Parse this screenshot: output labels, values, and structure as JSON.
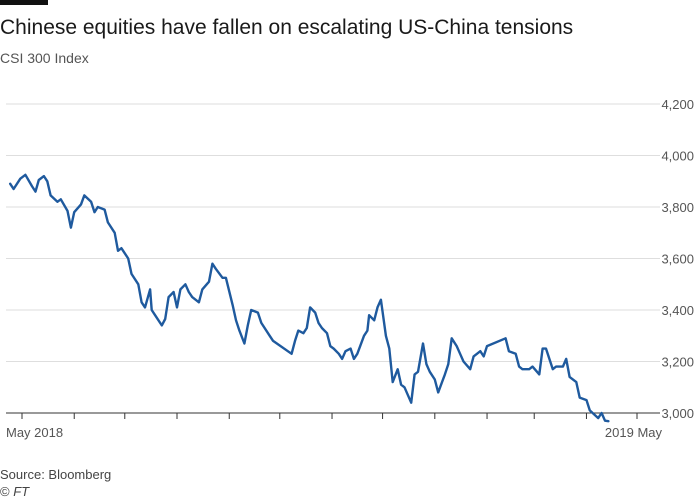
{
  "header": {
    "title": "Chinese equities have fallen on escalating US-China tensions",
    "subtitle": "CSI 300 Index"
  },
  "footer": {
    "source": "Source: Bloomberg",
    "copyright_symbol": "©",
    "copyright_name": "FT"
  },
  "colors": {
    "line": "#1f5a9e",
    "grid": "#dedede",
    "axis": "#333333",
    "tick_text": "#555555"
  },
  "chart_data": {
    "type": "line",
    "title": "Chinese equities have fallen on escalating US-China tensions",
    "subtitle": "CSI 300 Index",
    "x_range": [
      "2018-05-01",
      "2019-05-01"
    ],
    "ylim": [
      3000,
      4200
    ],
    "y_ticks": [
      3000,
      3200,
      3400,
      3600,
      3800,
      4000,
      4200
    ],
    "y_tick_labels": [
      "3,000",
      "3,200",
      "3,400",
      "3,600",
      "3,800",
      "4,000",
      "4,200"
    ],
    "y_axis_side": "right",
    "x_tick_labels": [
      {
        "date": "2018-05-01",
        "label": "May 2018"
      },
      {
        "date": "2019-05-01",
        "label": "2019 May"
      }
    ],
    "x_minor_ticks": [
      "2018-05-01",
      "2018-06-01",
      "2018-07-01",
      "2018-08-01",
      "2018-09-01",
      "2018-10-01",
      "2018-11-01",
      "2018-12-01",
      "2019-01-01",
      "2019-02-01",
      "2019-03-01",
      "2019-04-01",
      "2019-05-01"
    ],
    "grid": "horizontal",
    "series": [
      {
        "values": [
          [
            "2018-04-24",
            3890
          ],
          [
            "2018-04-26",
            3870
          ],
          [
            "2018-04-30",
            3910
          ],
          [
            "2018-05-03",
            3925
          ],
          [
            "2018-05-07",
            3880
          ],
          [
            "2018-05-09",
            3860
          ],
          [
            "2018-05-11",
            3905
          ],
          [
            "2018-05-14",
            3920
          ],
          [
            "2018-05-16",
            3900
          ],
          [
            "2018-05-18",
            3845
          ],
          [
            "2018-05-22",
            3820
          ],
          [
            "2018-05-24",
            3830
          ],
          [
            "2018-05-28",
            3785
          ],
          [
            "2018-05-30",
            3720
          ],
          [
            "2018-06-01",
            3780
          ],
          [
            "2018-06-05",
            3810
          ],
          [
            "2018-06-07",
            3845
          ],
          [
            "2018-06-11",
            3820
          ],
          [
            "2018-06-13",
            3780
          ],
          [
            "2018-06-15",
            3800
          ],
          [
            "2018-06-19",
            3790
          ],
          [
            "2018-06-21",
            3740
          ],
          [
            "2018-06-25",
            3700
          ],
          [
            "2018-06-27",
            3630
          ],
          [
            "2018-06-29",
            3640
          ],
          [
            "2018-07-03",
            3600
          ],
          [
            "2018-07-05",
            3540
          ],
          [
            "2018-07-09",
            3500
          ],
          [
            "2018-07-11",
            3430
          ],
          [
            "2018-07-13",
            3410
          ],
          [
            "2018-07-16",
            3480
          ],
          [
            "2018-07-17",
            3400
          ],
          [
            "2018-07-19",
            3380
          ],
          [
            "2018-07-23",
            3340
          ],
          [
            "2018-07-25",
            3365
          ],
          [
            "2018-07-27",
            3450
          ],
          [
            "2018-07-30",
            3470
          ],
          [
            "2018-08-01",
            3410
          ],
          [
            "2018-08-03",
            3480
          ],
          [
            "2018-08-06",
            3500
          ],
          [
            "2018-08-08",
            3470
          ],
          [
            "2018-08-10",
            3450
          ],
          [
            "2018-08-14",
            3430
          ],
          [
            "2018-08-16",
            3480
          ],
          [
            "2018-08-20",
            3510
          ],
          [
            "2018-08-22",
            3580
          ],
          [
            "2018-08-24",
            3560
          ],
          [
            "2018-08-28",
            3525
          ],
          [
            "2018-08-30",
            3525
          ],
          [
            "2018-09-03",
            3420
          ],
          [
            "2018-09-05",
            3360
          ],
          [
            "2018-09-07",
            3320
          ],
          [
            "2018-09-10",
            3270
          ],
          [
            "2018-09-12",
            3340
          ],
          [
            "2018-09-14",
            3400
          ],
          [
            "2018-09-18",
            3390
          ],
          [
            "2018-09-20",
            3350
          ],
          [
            "2018-09-25",
            3300
          ],
          [
            "2018-09-27",
            3280
          ],
          [
            "2018-10-08",
            3230
          ],
          [
            "2018-10-10",
            3280
          ],
          [
            "2018-10-12",
            3320
          ],
          [
            "2018-10-15",
            3310
          ],
          [
            "2018-10-17",
            3330
          ],
          [
            "2018-10-19",
            3410
          ],
          [
            "2018-10-22",
            3390
          ],
          [
            "2018-10-24",
            3350
          ],
          [
            "2018-10-26",
            3330
          ],
          [
            "2018-10-29",
            3310
          ],
          [
            "2018-10-31",
            3260
          ],
          [
            "2018-11-02",
            3250
          ],
          [
            "2018-11-05",
            3230
          ],
          [
            "2018-11-07",
            3210
          ],
          [
            "2018-11-09",
            3240
          ],
          [
            "2018-11-12",
            3250
          ],
          [
            "2018-11-14",
            3210
          ],
          [
            "2018-11-16",
            3230
          ],
          [
            "2018-11-20",
            3300
          ],
          [
            "2018-11-22",
            3320
          ],
          [
            "2018-11-23",
            3380
          ],
          [
            "2018-11-26",
            3360
          ],
          [
            "2018-11-28",
            3410
          ],
          [
            "2018-11-30",
            3440
          ],
          [
            "2018-12-03",
            3300
          ],
          [
            "2018-12-05",
            3250
          ],
          [
            "2018-12-07",
            3120
          ],
          [
            "2018-12-10",
            3170
          ],
          [
            "2018-12-12",
            3110
          ],
          [
            "2018-12-14",
            3100
          ],
          [
            "2018-12-18",
            3040
          ],
          [
            "2018-12-20",
            3150
          ],
          [
            "2018-12-22",
            3160
          ],
          [
            "2018-12-25",
            3270
          ],
          [
            "2018-12-27",
            3190
          ],
          [
            "2018-12-29",
            3160
          ],
          [
            "2019-01-01",
            3130
          ],
          [
            "2019-01-03",
            3080
          ],
          [
            "2019-01-07",
            3150
          ],
          [
            "2019-01-09",
            3190
          ],
          [
            "2019-01-11",
            3290
          ],
          [
            "2019-01-14",
            3260
          ],
          [
            "2019-01-16",
            3230
          ],
          [
            "2019-01-18",
            3200
          ],
          [
            "2019-01-22",
            3170
          ],
          [
            "2019-01-24",
            3220
          ],
          [
            "2019-01-28",
            3240
          ],
          [
            "2019-01-30",
            3220
          ],
          [
            "2019-02-01",
            3260
          ],
          [
            "2019-02-12",
            3290
          ],
          [
            "2019-02-14",
            3240
          ],
          [
            "2019-02-18",
            3230
          ],
          [
            "2019-02-20",
            3180
          ],
          [
            "2019-02-22",
            3170
          ],
          [
            "2019-02-26",
            3170
          ],
          [
            "2019-02-28",
            3180
          ],
          [
            "2019-03-04",
            3150
          ],
          [
            "2019-03-06",
            3250
          ],
          [
            "2019-03-08",
            3250
          ],
          [
            "2019-03-12",
            3170
          ],
          [
            "2019-03-14",
            3180
          ],
          [
            "2019-03-18",
            3180
          ],
          [
            "2019-03-20",
            3210
          ],
          [
            "2019-03-22",
            3140
          ],
          [
            "2019-03-26",
            3120
          ],
          [
            "2019-03-28",
            3060
          ],
          [
            "2019-04-01",
            3050
          ],
          [
            "2019-04-03",
            3010
          ],
          [
            "2019-04-08",
            2980
          ],
          [
            "2019-04-10",
            3000
          ],
          [
            "2019-04-12",
            2970
          ],
          [
            "2019-04-14",
            2968
          ]
        ]
      }
    ]
  }
}
